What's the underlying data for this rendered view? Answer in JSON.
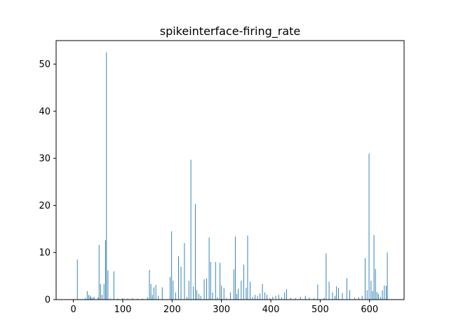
{
  "chart_data": {
    "type": "bar",
    "title": "spikeinterface-firing_rate",
    "xlabel": "",
    "ylabel": "",
    "xlim": [
      -35,
      670
    ],
    "ylim": [
      0,
      55
    ],
    "xticks": [
      0,
      100,
      200,
      300,
      400,
      500,
      600
    ],
    "yticks": [
      0,
      10,
      20,
      30,
      40,
      50
    ],
    "grid": false,
    "bar_color": "#1f77b4",
    "x": [
      8,
      24,
      28,
      31,
      34,
      36,
      39,
      42,
      50,
      52,
      55,
      58,
      62,
      65,
      67,
      70,
      75,
      82,
      90,
      100,
      110,
      120,
      130,
      140,
      150,
      154,
      157,
      160,
      163,
      167,
      172,
      180,
      196,
      199,
      202,
      207,
      213,
      218,
      225,
      230,
      234,
      238,
      243,
      247,
      250,
      254,
      258,
      265,
      270,
      275,
      278,
      282,
      288,
      292,
      297,
      300,
      305,
      310,
      318,
      325,
      328,
      331,
      334,
      340,
      345,
      350,
      353,
      358,
      363,
      368,
      373,
      378,
      383,
      388,
      392,
      398,
      404,
      410,
      416,
      422,
      428,
      432,
      440,
      450,
      460,
      470,
      478,
      488,
      495,
      508,
      512,
      518,
      525,
      530,
      533,
      537,
      545,
      554,
      560,
      570,
      578,
      585,
      591,
      595,
      599,
      603,
      606,
      609,
      612,
      615,
      618,
      622,
      626,
      630,
      634,
      636
    ],
    "values": [
      8.5,
      0.3,
      1.8,
      1.0,
      0.8,
      0.5,
      0.4,
      0.6,
      0.5,
      11.6,
      3.3,
      1.0,
      3.3,
      12.6,
      52.5,
      6.2,
      0.2,
      6.0,
      0.2,
      0.3,
      0.2,
      0.3,
      0.2,
      0.2,
      0.5,
      6.3,
      3.3,
      1.0,
      2.6,
      3.1,
      0.8,
      2.6,
      4.8,
      14.5,
      4.0,
      1.5,
      9.2,
      7.0,
      12.0,
      0.6,
      4.0,
      29.7,
      2.8,
      20.3,
      2.0,
      1.2,
      0.8,
      4.3,
      4.5,
      13.2,
      8.0,
      1.5,
      8.0,
      0.5,
      7.8,
      3.0,
      2.5,
      0.3,
      1.5,
      6.4,
      13.4,
      1.2,
      2.3,
      4.0,
      7.4,
      2.5,
      13.6,
      3.8,
      0.6,
      1.0,
      0.8,
      1.3,
      3.3,
      1.5,
      1.0,
      0.3,
      0.6,
      0.8,
      1.0,
      0.5,
      1.5,
      2.2,
      0.4,
      0.3,
      0.6,
      0.8,
      0.4,
      0.3,
      3.2,
      0.4,
      9.8,
      3.8,
      1.5,
      0.8,
      2.8,
      2.5,
      1.4,
      4.5,
      2.0,
      0.4,
      0.5,
      0.8,
      8.8,
      2.0,
      31.0,
      4.0,
      1.8,
      13.7,
      6.5,
      1.6,
      1.2,
      0.6,
      2.0,
      3.0,
      2.9,
      10.0
    ]
  }
}
